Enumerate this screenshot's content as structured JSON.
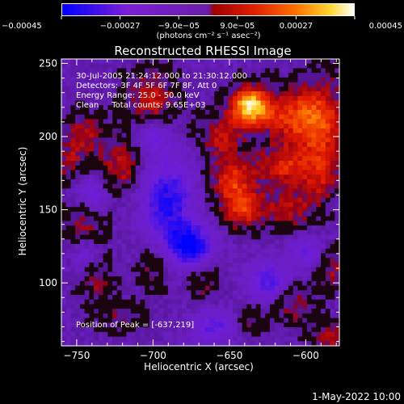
{
  "chart_data": {
    "type": "heatmap",
    "title": "Reconstructed RHESSI Image",
    "xlabel": "Heliocentric X (arcsec)",
    "ylabel": "Heliocentric Y (arcsec)",
    "xlim": [
      -760,
      -578
    ],
    "ylim": [
      57,
      253
    ],
    "x_ticks": [
      -750,
      -700,
      -650,
      -600
    ],
    "y_ticks": [
      100,
      150,
      200,
      250
    ],
    "x_tick_labels": [
      "−750",
      "−700",
      "−650",
      "−600"
    ],
    "y_tick_labels": [
      "100",
      "150",
      "200",
      "250"
    ],
    "colorbar": {
      "min": -0.00045,
      "max": 0.00045,
      "tick_values": [
        -0.00045,
        -0.00027,
        -9e-05,
        9e-05,
        0.00027,
        0.00045
      ],
      "tick_labels": [
        "−0.00045",
        "−0.00027",
        "−9.0e−05",
        "9.0e−05",
        "0.00027",
        "0.00045"
      ],
      "units": "(photons cm⁻² s⁻¹ asec⁻²)",
      "colors": [
        "#0000ff",
        "#7a1fd6",
        "#7a1fd6",
        "#d10000",
        "#ff6a00",
        "#ffff40",
        "#ffffff"
      ]
    },
    "peak": [
      -637,
      219
    ],
    "intensity_blobs": [
      {
        "x": -637,
        "y": 221,
        "value": 0.00045,
        "sx": 9,
        "sy": 9
      },
      {
        "x": -612,
        "y": 214,
        "value": 0.00022,
        "sx": 14,
        "sy": 12
      },
      {
        "x": -590,
        "y": 208,
        "value": 0.00026,
        "sx": 12,
        "sy": 22
      },
      {
        "x": -655,
        "y": 200,
        "value": 0.00018,
        "sx": 10,
        "sy": 10
      },
      {
        "x": -615,
        "y": 180,
        "value": 0.00022,
        "sx": 12,
        "sy": 10
      },
      {
        "x": -648,
        "y": 170,
        "value": 0.00024,
        "sx": 10,
        "sy": 12
      },
      {
        "x": -640,
        "y": 150,
        "value": 0.00022,
        "sx": 10,
        "sy": 10
      },
      {
        "x": -610,
        "y": 150,
        "value": 0.00016,
        "sx": 12,
        "sy": 10
      },
      {
        "x": -590,
        "y": 170,
        "value": 0.00014,
        "sx": 8,
        "sy": 12
      },
      {
        "x": -700,
        "y": 225,
        "value": 0.0002,
        "sx": 12,
        "sy": 14
      },
      {
        "x": -720,
        "y": 180,
        "value": 0.00018,
        "sx": 10,
        "sy": 14
      },
      {
        "x": -745,
        "y": 200,
        "value": 0.00016,
        "sx": 10,
        "sy": 12
      },
      {
        "x": -755,
        "y": 180,
        "value": 0.00013,
        "sx": 6,
        "sy": 10
      },
      {
        "x": -745,
        "y": 140,
        "value": 0.00016,
        "sx": 10,
        "sy": 14
      },
      {
        "x": -735,
        "y": 100,
        "value": 0.00013,
        "sx": 8,
        "sy": 10
      },
      {
        "x": -700,
        "y": 110,
        "value": 0.00012,
        "sx": 8,
        "sy": 12
      },
      {
        "x": -665,
        "y": 100,
        "value": 0.00011,
        "sx": 8,
        "sy": 10
      },
      {
        "x": -720,
        "y": 75,
        "value": 0.0001,
        "sx": 14,
        "sy": 8
      },
      {
        "x": -608,
        "y": 85,
        "value": 0.00015,
        "sx": 10,
        "sy": 10
      },
      {
        "x": -635,
        "y": 75,
        "value": 0.0001,
        "sx": 8,
        "sy": 8
      },
      {
        "x": -583,
        "y": 108,
        "value": 0.00014,
        "sx": 8,
        "sy": 10
      },
      {
        "x": -585,
        "y": 62,
        "value": 0.00016,
        "sx": 8,
        "sy": 8
      },
      {
        "x": -690,
        "y": 155,
        "value": -0.0003,
        "sx": 12,
        "sy": 22
      },
      {
        "x": -675,
        "y": 125,
        "value": -0.00034,
        "sx": 10,
        "sy": 10
      },
      {
        "x": -740,
        "y": 160,
        "value": -0.00022,
        "sx": 8,
        "sy": 8
      },
      {
        "x": -625,
        "y": 100,
        "value": -0.00024,
        "sx": 10,
        "sy": 10
      },
      {
        "x": -600,
        "y": 120,
        "value": -0.00018,
        "sx": 8,
        "sy": 8
      },
      {
        "x": -660,
        "y": 70,
        "value": -0.00022,
        "sx": 10,
        "sy": 8
      },
      {
        "x": -700,
        "y": 200,
        "value": -0.00018,
        "sx": 8,
        "sy": 8
      },
      {
        "x": -745,
        "y": 120,
        "value": -0.00016,
        "sx": 6,
        "sy": 8
      }
    ],
    "annotations": [
      "30-Jul-2005 21:24:12.000 to 21:30:12.000",
      "Detectors: 3F 4F 5F 6F 7F 8F, Att 0",
      "Energy Range: 25.0 - 50.0 keV",
      "Clean     Total counts: 9.65E+03",
      "Position of Peak = [-637,219]"
    ]
  },
  "footer": {
    "date": "1-May-2022 10:00"
  }
}
